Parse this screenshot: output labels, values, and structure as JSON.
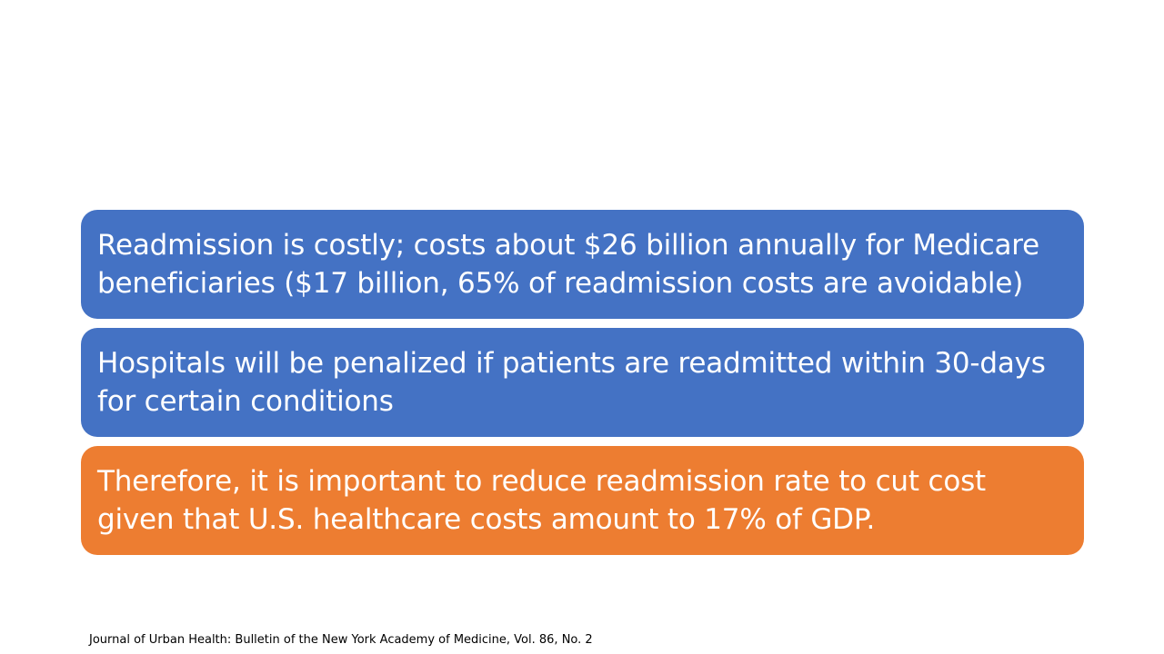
{
  "slide": {
    "boxes": [
      {
        "text": "Readmission is costly; costs about $26 billion annually for Medicare beneficiaries ($17 billion, 65% of readmission costs are avoidable)",
        "color": "#4472c4"
      },
      {
        "text": "Hospitals will be penalized if patients are readmitted within 30-days for certain conditions",
        "color": "#4472c4"
      },
      {
        "text": "Therefore, it is important to reduce readmission rate to cut cost given that U.S. healthcare costs amount to 17% of GDP.",
        "color": "#ed7d31"
      }
    ],
    "citation": "Journal of Urban Health: Bulletin of the New York Academy of Medicine, Vol. 86, No. 2"
  }
}
